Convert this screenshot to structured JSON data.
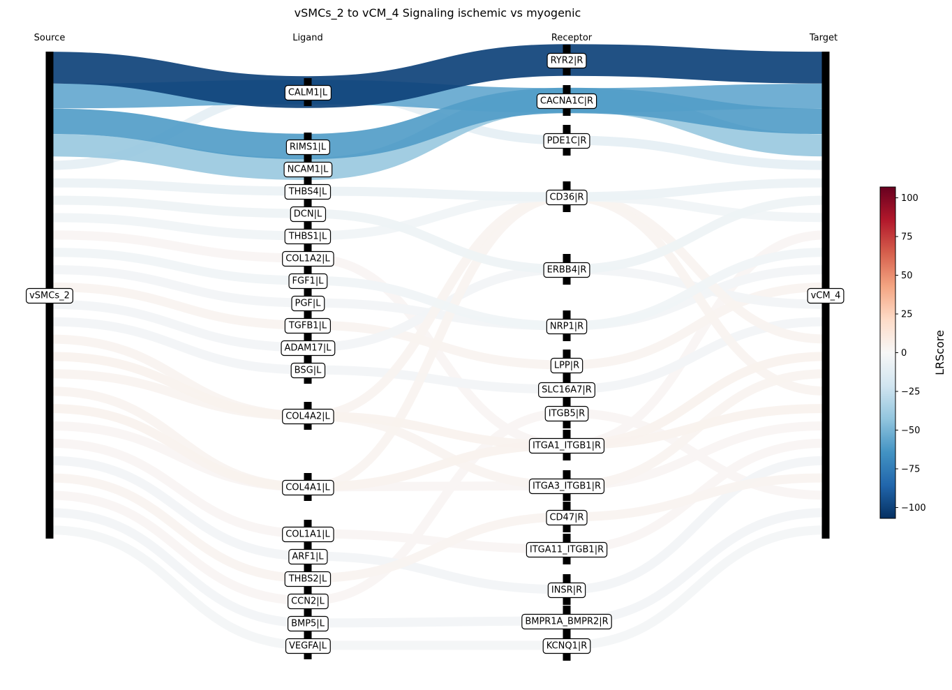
{
  "title": "vSMCs_2 to vCM_4 Signaling ischemic vs myogenic",
  "headers": {
    "source": "Source",
    "ligand": "Ligand",
    "receptor": "Receptor",
    "target": "Target"
  },
  "source": "vSMCs_2",
  "target": "vCM_4",
  "ligands": [
    "CALM1|L",
    "RIMS1|L",
    "NCAM1|L",
    "THBS4|L",
    "DCN|L",
    "THBS1|L",
    "COL1A2|L",
    "FGF1|L",
    "PGF|L",
    "TGFB1|L",
    "ADAM17|L",
    "BSG|L",
    "COL4A2|L",
    "COL4A1|L",
    "COL1A1|L",
    "ARF1|L",
    "THBS2|L",
    "CCN2|L",
    "BMP5|L",
    "VEGFA|L"
  ],
  "receptors": [
    "RYR2|R",
    "CACNA1C|R",
    "PDE1C|R",
    "CD36|R",
    "ERBB4|R",
    "NRP1|R",
    "LPP|R",
    "SLC16A7|R",
    "ITGB5|R",
    "ITGA1_ITGB1|R",
    "ITGA3_ITGB1|R",
    "CD47|R",
    "ITGA11_ITGB1|R",
    "INSR|R",
    "BMPR1A_BMPR2|R",
    "KCNQ1|R"
  ],
  "interactions": [
    {
      "ligand": "CALM1|L",
      "receptor": "RYR2|R",
      "score": -100
    },
    {
      "ligand": "CALM1|L",
      "receptor": "CACNA1C|R",
      "score": -55
    },
    {
      "ligand": "RIMS1|L",
      "receptor": "CACNA1C|R",
      "score": -60
    },
    {
      "ligand": "NCAM1|L",
      "receptor": "CACNA1C|R",
      "score": -40
    },
    {
      "ligand": "CALM1|L",
      "receptor": "PDE1C|R",
      "score": -10
    },
    {
      "ligand": "THBS4|L",
      "receptor": "CD36|R",
      "score": -6
    },
    {
      "ligand": "DCN|L",
      "receptor": "ERBB4|R",
      "score": -5
    },
    {
      "ligand": "THBS1|L",
      "receptor": "CD36|R",
      "score": -4
    },
    {
      "ligand": "COL1A2|L",
      "receptor": "ITGA1_ITGB1|R",
      "score": 2
    },
    {
      "ligand": "FGF1|L",
      "receptor": "NRP1|R",
      "score": -4
    },
    {
      "ligand": "PGF|L",
      "receptor": "NRP1|R",
      "score": -3
    },
    {
      "ligand": "TGFB1|L",
      "receptor": "LPP|R",
      "score": 3
    },
    {
      "ligand": "ADAM17|L",
      "receptor": "ERBB4|R",
      "score": -3
    },
    {
      "ligand": "BSG|L",
      "receptor": "SLC16A7|R",
      "score": -3
    },
    {
      "ligand": "COL4A2|L",
      "receptor": "CD36|R",
      "score": 3
    },
    {
      "ligand": "COL4A2|L",
      "receptor": "ITGA1_ITGB1|R",
      "score": 4
    },
    {
      "ligand": "COL4A2|L",
      "receptor": "ITGA3_ITGB1|R",
      "score": 3
    },
    {
      "ligand": "COL4A1|L",
      "receptor": "CD36|R",
      "score": 3
    },
    {
      "ligand": "COL4A1|L",
      "receptor": "ITGA1_ITGB1|R",
      "score": 4
    },
    {
      "ligand": "COL4A1|L",
      "receptor": "ITGA3_ITGB1|R",
      "score": 2
    },
    {
      "ligand": "COL1A1|L",
      "receptor": "ITGA11_ITGB1|R",
      "score": 2
    },
    {
      "ligand": "ARF1|L",
      "receptor": "INSR|R",
      "score": -3
    },
    {
      "ligand": "THBS2|L",
      "receptor": "CD47|R",
      "score": 3
    },
    {
      "ligand": "CCN2|L",
      "receptor": "ITGB5|R",
      "score": 2
    },
    {
      "ligand": "BMP5|L",
      "receptor": "BMPR1A_BMPR2|R",
      "score": -3
    },
    {
      "ligand": "VEGFA|L",
      "receptor": "KCNQ1|R",
      "score": -2
    }
  ],
  "colorbar": {
    "label": "LRScore",
    "min": -107,
    "max": 107,
    "ticks": [
      100,
      75,
      50,
      25,
      0,
      -25,
      -50,
      -75,
      -100
    ],
    "colormap": "RdBu_r",
    "stops": [
      "#053061",
      "#2166ac",
      "#4393c3",
      "#92c5de",
      "#d1e5f0",
      "#f7f7f7",
      "#fddbc7",
      "#f4a582",
      "#d6604d",
      "#b2182b",
      "#67001f"
    ]
  }
}
